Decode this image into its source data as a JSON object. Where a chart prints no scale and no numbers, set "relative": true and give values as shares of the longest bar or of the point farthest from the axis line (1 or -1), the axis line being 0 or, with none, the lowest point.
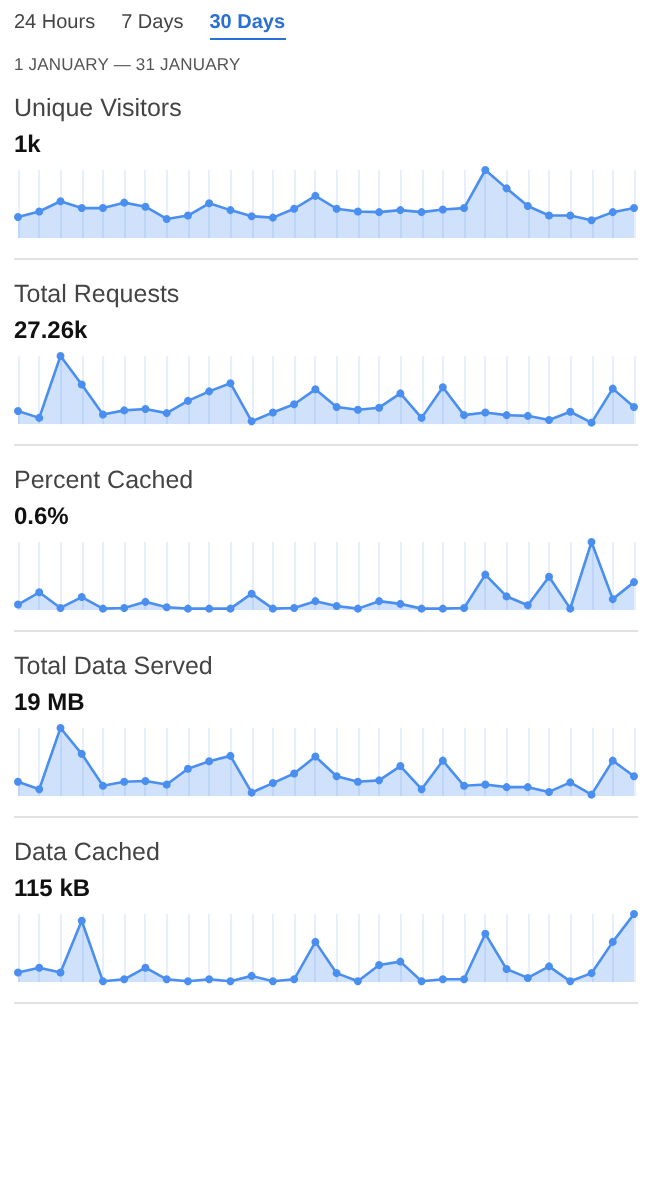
{
  "chart_data": [
    {
      "type": "area",
      "title": "Unique Visitors",
      "subtitle": "1k",
      "annotations": [
        "24 Hours",
        "7 Days",
        "30 Days",
        "1 JANUARY — 31 JANUARY"
      ],
      "relative": true,
      "grid": "x",
      "marker": "circle",
      "color": "#4a8ff0",
      "categories": [
        null,
        null,
        null,
        null,
        null,
        null,
        null,
        null,
        null,
        null,
        null,
        null,
        null,
        null,
        null,
        null,
        null,
        null,
        null,
        null,
        null,
        null,
        null,
        null,
        null,
        null,
        null,
        null,
        null,
        null
      ],
      "values": [
        0.31,
        0.39,
        0.54,
        0.44,
        0.44,
        0.52,
        0.46,
        0.28,
        0.33,
        0.51,
        0.41,
        0.32,
        0.3,
        0.43,
        0.62,
        0.43,
        0.39,
        0.38,
        0.41,
        0.38,
        0.42,
        0.44,
        1,
        0.73,
        0.47,
        0.33,
        0.33,
        0.26,
        0.38,
        0.44
      ]
    },
    {
      "type": "area",
      "title": "Total Requests",
      "subtitle": "27.26k",
      "relative": true,
      "grid": "x",
      "marker": "circle",
      "color": "#4a8ff0",
      "categories": [
        null,
        null,
        null,
        null,
        null,
        null,
        null,
        null,
        null,
        null,
        null,
        null,
        null,
        null,
        null,
        null,
        null,
        null,
        null,
        null,
        null,
        null,
        null,
        null,
        null,
        null,
        null,
        null,
        null,
        null
      ],
      "values": [
        0.19,
        0.09,
        1,
        0.58,
        0.14,
        0.2,
        0.22,
        0.16,
        0.34,
        0.48,
        0.6,
        0.04,
        0.17,
        0.29,
        0.51,
        0.25,
        0.21,
        0.24,
        0.45,
        0.09,
        0.54,
        0.13,
        0.17,
        0.13,
        0.12,
        0.06,
        0.18,
        0.02,
        0.52,
        0.25
      ]
    },
    {
      "type": "area",
      "title": "Percent Cached",
      "subtitle": "0.6%",
      "relative": true,
      "grid": "x",
      "marker": "circle",
      "color": "#4a8ff0",
      "categories": [
        null,
        null,
        null,
        null,
        null,
        null,
        null,
        null,
        null,
        null,
        null,
        null,
        null,
        null,
        null,
        null,
        null,
        null,
        null,
        null,
        null,
        null,
        null,
        null,
        null,
        null,
        null,
        null,
        null,
        null
      ],
      "values": [
        0.08,
        0.26,
        0.03,
        0.19,
        0.02,
        0.03,
        0.12,
        0.04,
        0.02,
        0.02,
        0.02,
        0.24,
        0.02,
        0.03,
        0.13,
        0.06,
        0.02,
        0.13,
        0.09,
        0.02,
        0.02,
        0.03,
        0.52,
        0.2,
        0.07,
        0.49,
        0.02,
        1,
        0.16,
        0.41
      ]
    },
    {
      "type": "area",
      "title": "Total Data Served",
      "subtitle": "19 MB",
      "relative": true,
      "grid": "x",
      "marker": "circle",
      "color": "#4a8ff0",
      "categories": [
        null,
        null,
        null,
        null,
        null,
        null,
        null,
        null,
        null,
        null,
        null,
        null,
        null,
        null,
        null,
        null,
        null,
        null,
        null,
        null,
        null,
        null,
        null,
        null,
        null,
        null,
        null,
        null,
        null,
        null
      ],
      "values": [
        0.21,
        0.1,
        1,
        0.62,
        0.15,
        0.21,
        0.22,
        0.17,
        0.4,
        0.51,
        0.59,
        0.05,
        0.19,
        0.33,
        0.58,
        0.29,
        0.21,
        0.23,
        0.44,
        0.1,
        0.52,
        0.15,
        0.17,
        0.13,
        0.13,
        0.06,
        0.2,
        0.02,
        0.52,
        0.29
      ]
    },
    {
      "type": "area",
      "title": "Data Cached",
      "subtitle": "115 kB",
      "relative": true,
      "grid": "x",
      "marker": "circle",
      "color": "#4a8ff0",
      "categories": [
        null,
        null,
        null,
        null,
        null,
        null,
        null,
        null,
        null,
        null,
        null,
        null,
        null,
        null,
        null,
        null,
        null,
        null,
        null,
        null,
        null,
        null,
        null,
        null,
        null,
        null,
        null,
        null,
        null,
        null
      ],
      "values": [
        0.14,
        0.21,
        0.14,
        0.9,
        0.01,
        0.04,
        0.21,
        0.04,
        0.01,
        0.04,
        0.01,
        0.09,
        0.01,
        0.04,
        0.59,
        0.13,
        0.01,
        0.25,
        0.3,
        0.01,
        0.04,
        0.04,
        0.71,
        0.19,
        0.06,
        0.23,
        0.01,
        0.13,
        0.59,
        1
      ]
    }
  ]
}
